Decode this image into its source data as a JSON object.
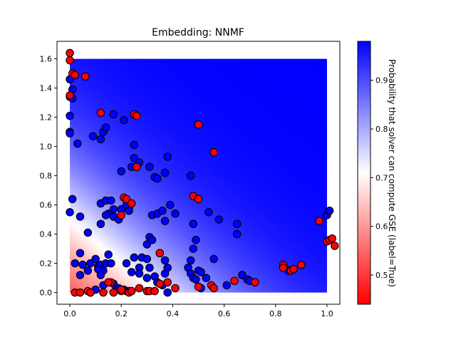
{
  "chart_data": {
    "type": "scatter",
    "title": "Embedding: NNMF",
    "xlabel": "",
    "ylabel": "",
    "xlim": [
      -0.05,
      1.05
    ],
    "ylim": [
      -0.08,
      1.72
    ],
    "x_ticks": [
      0.0,
      0.2,
      0.4,
      0.6,
      0.8,
      1.0
    ],
    "x_tick_labels": [
      "0.0",
      "0.2",
      "0.4",
      "0.6",
      "0.8",
      "1.0"
    ],
    "y_ticks": [
      0.0,
      0.2,
      0.4,
      0.6,
      0.8,
      1.0,
      1.2,
      1.4,
      1.6
    ],
    "y_tick_labels": [
      "0.0",
      "0.2",
      "0.4",
      "0.6",
      "0.8",
      "1.0",
      "1.2",
      "1.4",
      "1.6"
    ],
    "grid": false,
    "background_field": {
      "description": "filled probability surface over [0,1]x[0,1.6]",
      "extent_x": [
        0,
        1
      ],
      "extent_y": [
        0,
        1.6
      ],
      "low_color": "#ff0000",
      "mid_color": "#ffffff",
      "high_color": "#0000ff"
    },
    "colorbar": {
      "label": "Probability that solver can compute GSE (label=True)",
      "ticks": [
        0.5,
        0.6,
        0.7,
        0.8,
        0.9
      ],
      "tick_labels": [
        "0.5",
        "0.6",
        "0.7",
        "0.8",
        "0.9"
      ],
      "range": [
        0.44,
        0.98
      ],
      "colors": [
        "#ff0000",
        "#ffffff",
        "#0000ff"
      ]
    },
    "series": [
      {
        "color": "#0000ff",
        "points": [
          [
            0.0,
            1.21
          ],
          [
            0.0,
            1.1
          ],
          [
            0.0,
            1.09
          ],
          [
            0.0,
            1.34
          ],
          [
            0.01,
            1.39
          ],
          [
            0.0,
            1.46
          ],
          [
            0.01,
            1.33
          ],
          [
            0.03,
            1.02
          ],
          [
            0.01,
            0.64
          ],
          [
            0.0,
            0.55
          ],
          [
            0.04,
            0.52
          ],
          [
            0.07,
            0.41
          ],
          [
            0.02,
            0.2
          ],
          [
            0.04,
            0.27
          ],
          [
            0.05,
            0.19
          ],
          [
            0.04,
            0.12
          ],
          [
            0.07,
            0.15
          ],
          [
            0.08,
            0.2
          ],
          [
            0.1,
            0.23
          ],
          [
            0.11,
            0.18
          ],
          [
            0.12,
            0.19
          ],
          [
            0.13,
            0.15
          ],
          [
            0.14,
            0.2
          ],
          [
            0.15,
            0.26
          ],
          [
            0.11,
            0.16
          ],
          [
            0.12,
            0.12
          ],
          [
            0.09,
            1.07
          ],
          [
            0.12,
            1.05
          ],
          [
            0.13,
            1.1
          ],
          [
            0.14,
            1.13
          ],
          [
            0.17,
            1.22
          ],
          [
            0.21,
            1.18
          ],
          [
            0.25,
            1.01
          ],
          [
            0.12,
            0.61
          ],
          [
            0.14,
            0.63
          ],
          [
            0.16,
            0.63
          ],
          [
            0.17,
            0.57
          ],
          [
            0.15,
            0.54
          ],
          [
            0.17,
            0.52
          ],
          [
            0.19,
            0.5
          ],
          [
            0.2,
            0.57
          ],
          [
            0.23,
            0.58
          ],
          [
            0.22,
            0.6
          ],
          [
            0.23,
            0.56
          ],
          [
            0.12,
            0.47
          ],
          [
            0.14,
            0.53
          ],
          [
            0.2,
            0.83
          ],
          [
            0.24,
            0.86
          ],
          [
            0.25,
            0.92
          ],
          [
            0.27,
            0.89
          ],
          [
            0.26,
            0.86
          ],
          [
            0.31,
            0.86
          ],
          [
            0.33,
            0.79
          ],
          [
            0.34,
            0.78
          ],
          [
            0.37,
            0.82
          ],
          [
            0.38,
            0.93
          ],
          [
            0.47,
            0.8
          ],
          [
            0.32,
            0.53
          ],
          [
            0.34,
            0.54
          ],
          [
            0.36,
            0.56
          ],
          [
            0.39,
            0.6
          ],
          [
            0.37,
            0.49
          ],
          [
            0.41,
            0.54
          ],
          [
            0.31,
            0.38
          ],
          [
            0.3,
            0.33
          ],
          [
            0.32,
            0.36
          ],
          [
            0.35,
            0.27
          ],
          [
            0.37,
            0.22
          ],
          [
            0.37,
            0.13
          ],
          [
            0.38,
            0.17
          ],
          [
            0.36,
            0.05
          ],
          [
            0.38,
            0.0
          ],
          [
            0.16,
            0.2
          ],
          [
            0.17,
            0.06
          ],
          [
            0.18,
            0.02
          ],
          [
            0.19,
            0.03
          ],
          [
            0.21,
            0.02
          ],
          [
            0.22,
            0.01
          ],
          [
            0.23,
            0.01
          ],
          [
            0.22,
            0.2
          ],
          [
            0.24,
            0.14
          ],
          [
            0.25,
            0.24
          ],
          [
            0.27,
            0.17
          ],
          [
            0.27,
            0.13
          ],
          [
            0.28,
            0.24
          ],
          [
            0.3,
            0.23
          ],
          [
            0.31,
            0.17
          ],
          [
            0.3,
            0.1
          ],
          [
            0.33,
            0.11
          ],
          [
            0.34,
            0.07
          ],
          [
            0.48,
            0.47
          ],
          [
            0.49,
            0.36
          ],
          [
            0.48,
            0.3
          ],
          [
            0.47,
            0.22
          ],
          [
            0.46,
            0.17
          ],
          [
            0.47,
            0.13
          ],
          [
            0.48,
            0.1
          ],
          [
            0.49,
            0.09
          ],
          [
            0.5,
            0.15
          ],
          [
            0.51,
            0.14
          ],
          [
            0.53,
            0.1
          ],
          [
            0.51,
            0.03
          ],
          [
            0.56,
            0.23
          ],
          [
            0.54,
            0.55
          ],
          [
            0.58,
            0.5
          ],
          [
            0.65,
            0.47
          ],
          [
            0.65,
            0.4
          ],
          [
            0.61,
            0.05
          ],
          [
            0.67,
            0.12
          ],
          [
            0.69,
            0.09
          ],
          [
            0.7,
            0.08
          ],
          [
            0.85,
            0.15
          ],
          [
            1.0,
            0.53
          ],
          [
            1.01,
            0.56
          ],
          [
            0.08,
            0.0
          ],
          [
            0.1,
            0.02
          ],
          [
            0.13,
            0.05
          ]
        ]
      },
      {
        "color": "#ff0000",
        "points": [
          [
            0.0,
            1.64
          ],
          [
            0.0,
            1.59
          ],
          [
            0.01,
            1.5
          ],
          [
            0.02,
            1.49
          ],
          [
            0.06,
            1.48
          ],
          [
            0.0,
            1.35
          ],
          [
            0.12,
            1.23
          ],
          [
            0.25,
            1.22
          ],
          [
            0.26,
            1.21
          ],
          [
            0.5,
            1.15
          ],
          [
            0.56,
            0.96
          ],
          [
            0.26,
            0.86
          ],
          [
            0.21,
            0.65
          ],
          [
            0.22,
            0.64
          ],
          [
            0.24,
            0.61
          ],
          [
            0.2,
            0.53
          ],
          [
            0.48,
            0.66
          ],
          [
            0.5,
            0.64
          ],
          [
            0.35,
            0.27
          ],
          [
            0.3,
            0.01
          ],
          [
            0.31,
            0.01
          ],
          [
            0.33,
            0.01
          ],
          [
            0.35,
            0.06
          ],
          [
            0.38,
            0.07
          ],
          [
            0.41,
            0.03
          ],
          [
            0.5,
            0.04
          ],
          [
            0.55,
            0.05
          ],
          [
            0.56,
            0.03
          ],
          [
            0.64,
            0.08
          ],
          [
            0.72,
            0.07
          ],
          [
            0.83,
            0.19
          ],
          [
            0.83,
            0.17
          ],
          [
            0.86,
            0.15
          ],
          [
            0.87,
            0.16
          ],
          [
            0.9,
            0.19
          ],
          [
            0.97,
            0.49
          ],
          [
            1.0,
            0.35
          ],
          [
            1.01,
            0.36
          ],
          [
            1.02,
            0.37
          ],
          [
            1.03,
            0.32
          ],
          [
            0.02,
            0.0
          ],
          [
            0.04,
            0.0
          ],
          [
            0.07,
            0.01
          ],
          [
            0.08,
            0.0
          ],
          [
            0.13,
            0.0
          ],
          [
            0.17,
            0.0
          ],
          [
            0.16,
            0.07
          ],
          [
            0.2,
            0.01
          ],
          [
            0.23,
            0.0
          ],
          [
            0.24,
            0.01
          ],
          [
            0.27,
            0.03
          ],
          [
            0.15,
            0.07
          ],
          [
            0.2,
            0.02
          ]
        ]
      }
    ]
  }
}
